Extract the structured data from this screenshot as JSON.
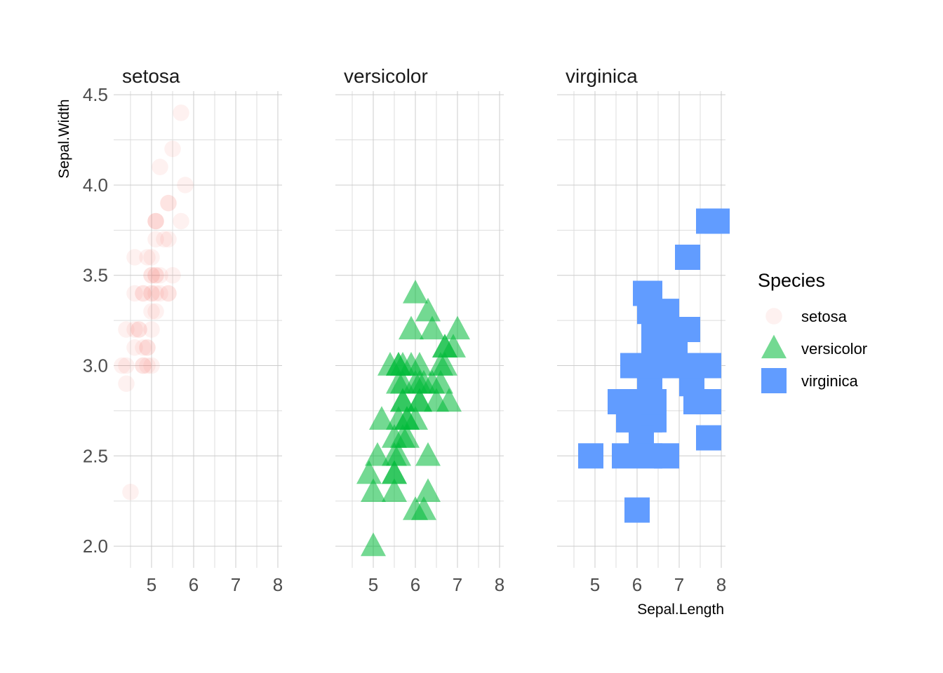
{
  "chart_data": {
    "type": "scatter",
    "facets": [
      "setosa",
      "versicolor",
      "virginica"
    ],
    "xlabel": "Sepal.Length",
    "ylabel": "Sepal.Width",
    "xlim": [
      4.3,
      7.9
    ],
    "ylim": [
      2.0,
      4.4
    ],
    "x_ticks": [
      5,
      6,
      7,
      8
    ],
    "y_ticks": [
      2.0,
      2.5,
      3.0,
      3.5,
      4.0,
      4.5
    ],
    "x_tick_labels": [
      "5",
      "6",
      "7",
      "8"
    ],
    "y_tick_labels": [
      "2.0",
      "2.5",
      "3.0",
      "3.5",
      "4.0",
      "4.5"
    ],
    "grid": true,
    "legend": {
      "title": "Species",
      "position": "right",
      "entries": [
        "setosa",
        "versicolor",
        "virginica"
      ]
    },
    "series": [
      {
        "name": "setosa",
        "shape": "circle",
        "color": "#F8766D",
        "opacity": 0.1,
        "points": [
          [
            5.1,
            3.5
          ],
          [
            4.9,
            3.0
          ],
          [
            4.7,
            3.2
          ],
          [
            4.6,
            3.1
          ],
          [
            5.0,
            3.6
          ],
          [
            5.4,
            3.9
          ],
          [
            4.6,
            3.4
          ],
          [
            5.0,
            3.4
          ],
          [
            4.4,
            2.9
          ],
          [
            4.9,
            3.1
          ],
          [
            5.4,
            3.7
          ],
          [
            4.8,
            3.4
          ],
          [
            4.8,
            3.0
          ],
          [
            4.3,
            3.0
          ],
          [
            5.8,
            4.0
          ],
          [
            5.7,
            4.4
          ],
          [
            5.4,
            3.9
          ],
          [
            5.1,
            3.5
          ],
          [
            5.7,
            3.8
          ],
          [
            5.1,
            3.8
          ],
          [
            5.4,
            3.4
          ],
          [
            5.1,
            3.7
          ],
          [
            4.6,
            3.6
          ],
          [
            5.1,
            3.3
          ],
          [
            4.8,
            3.4
          ],
          [
            5.0,
            3.0
          ],
          [
            5.0,
            3.4
          ],
          [
            5.2,
            3.5
          ],
          [
            5.2,
            3.4
          ],
          [
            4.7,
            3.2
          ],
          [
            4.8,
            3.1
          ],
          [
            5.4,
            3.4
          ],
          [
            5.2,
            4.1
          ],
          [
            5.5,
            4.2
          ],
          [
            4.9,
            3.1
          ],
          [
            5.0,
            3.2
          ],
          [
            5.5,
            3.5
          ],
          [
            4.9,
            3.6
          ],
          [
            4.4,
            3.0
          ],
          [
            5.1,
            3.4
          ],
          [
            5.0,
            3.5
          ],
          [
            4.5,
            2.3
          ],
          [
            4.4,
            3.2
          ],
          [
            5.0,
            3.5
          ],
          [
            5.1,
            3.8
          ],
          [
            4.8,
            3.0
          ],
          [
            5.1,
            3.8
          ],
          [
            4.6,
            3.2
          ],
          [
            5.3,
            3.7
          ],
          [
            5.0,
            3.3
          ]
        ]
      },
      {
        "name": "versicolor",
        "shape": "triangle",
        "color": "#00BA38",
        "opacity": 0.55,
        "points": [
          [
            7.0,
            3.2
          ],
          [
            6.4,
            3.2
          ],
          [
            6.9,
            3.1
          ],
          [
            5.5,
            2.3
          ],
          [
            6.5,
            2.8
          ],
          [
            5.7,
            2.8
          ],
          [
            6.3,
            3.3
          ],
          [
            4.9,
            2.4
          ],
          [
            6.6,
            2.9
          ],
          [
            5.2,
            2.7
          ],
          [
            5.0,
            2.0
          ],
          [
            5.9,
            3.0
          ],
          [
            6.0,
            2.2
          ],
          [
            6.1,
            2.9
          ],
          [
            5.6,
            2.9
          ],
          [
            6.7,
            3.1
          ],
          [
            5.6,
            3.0
          ],
          [
            5.8,
            2.7
          ],
          [
            6.2,
            2.2
          ],
          [
            5.6,
            2.5
          ],
          [
            5.9,
            3.2
          ],
          [
            6.1,
            2.8
          ],
          [
            6.3,
            2.5
          ],
          [
            6.1,
            2.8
          ],
          [
            6.4,
            2.9
          ],
          [
            6.6,
            3.0
          ],
          [
            6.8,
            2.8
          ],
          [
            6.7,
            3.0
          ],
          [
            6.0,
            2.9
          ],
          [
            5.7,
            2.6
          ],
          [
            5.5,
            2.4
          ],
          [
            5.5,
            2.4
          ],
          [
            5.8,
            2.7
          ],
          [
            6.0,
            2.7
          ],
          [
            5.4,
            3.0
          ],
          [
            6.0,
            3.4
          ],
          [
            6.7,
            3.1
          ],
          [
            6.3,
            2.3
          ],
          [
            5.6,
            3.0
          ],
          [
            5.5,
            2.5
          ],
          [
            5.5,
            2.6
          ],
          [
            6.1,
            3.0
          ],
          [
            5.8,
            2.6
          ],
          [
            5.0,
            2.3
          ],
          [
            5.6,
            2.7
          ],
          [
            5.7,
            3.0
          ],
          [
            5.7,
            2.9
          ],
          [
            6.2,
            2.9
          ],
          [
            5.1,
            2.5
          ],
          [
            5.7,
            2.8
          ]
        ]
      },
      {
        "name": "virginica",
        "shape": "square",
        "color": "#619CFF",
        "opacity": 1.0,
        "points": [
          [
            6.3,
            3.3
          ],
          [
            5.8,
            2.7
          ],
          [
            7.1,
            3.0
          ],
          [
            6.3,
            2.9
          ],
          [
            6.5,
            3.0
          ],
          [
            7.6,
            3.0
          ],
          [
            4.9,
            2.5
          ],
          [
            7.3,
            2.9
          ],
          [
            6.7,
            2.5
          ],
          [
            7.2,
            3.6
          ],
          [
            6.5,
            3.2
          ],
          [
            6.4,
            2.7
          ],
          [
            6.8,
            3.0
          ],
          [
            5.7,
            2.5
          ],
          [
            5.8,
            2.8
          ],
          [
            6.4,
            3.2
          ],
          [
            6.5,
            3.0
          ],
          [
            7.7,
            3.8
          ],
          [
            7.7,
            2.6
          ],
          [
            6.0,
            2.2
          ],
          [
            6.9,
            3.2
          ],
          [
            5.6,
            2.8
          ],
          [
            7.7,
            2.8
          ],
          [
            6.3,
            2.7
          ],
          [
            6.7,
            3.3
          ],
          [
            7.2,
            3.2
          ],
          [
            6.2,
            2.8
          ],
          [
            6.1,
            3.0
          ],
          [
            6.4,
            2.8
          ],
          [
            7.2,
            3.0
          ],
          [
            7.4,
            2.8
          ],
          [
            7.9,
            3.8
          ],
          [
            6.4,
            2.8
          ],
          [
            6.3,
            2.8
          ],
          [
            6.1,
            2.6
          ],
          [
            7.7,
            3.0
          ],
          [
            6.3,
            3.4
          ],
          [
            6.4,
            3.1
          ],
          [
            6.0,
            3.0
          ],
          [
            6.9,
            3.1
          ],
          [
            6.7,
            3.1
          ],
          [
            6.9,
            3.1
          ],
          [
            5.8,
            2.7
          ],
          [
            6.8,
            3.2
          ],
          [
            6.7,
            3.3
          ],
          [
            6.7,
            3.0
          ],
          [
            6.3,
            2.5
          ],
          [
            6.5,
            3.0
          ],
          [
            6.2,
            3.4
          ],
          [
            5.9,
            3.0
          ]
        ]
      }
    ]
  }
}
